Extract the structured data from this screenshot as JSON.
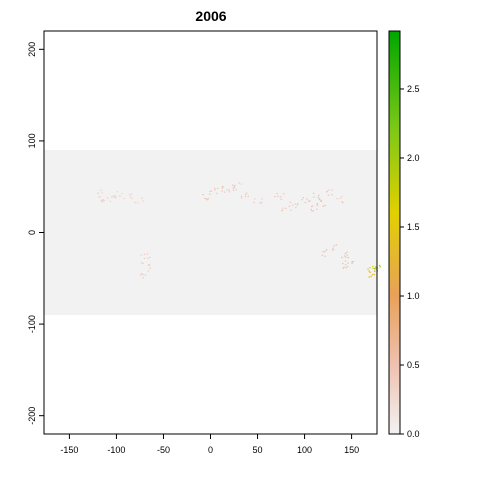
{
  "plot": {
    "title": "2006",
    "x_axis": {
      "range": [
        -177,
        177
      ],
      "ticks": [
        -150,
        -100,
        -50,
        0,
        50,
        100,
        150
      ]
    },
    "y_axis": {
      "range": [
        -220,
        220
      ],
      "ticks": [
        -200,
        -100,
        0,
        100,
        200
      ]
    },
    "raster_extent": {
      "lat_min": -90,
      "lat_max": 90,
      "background_color": "#f2f2f2"
    }
  },
  "colorbar": {
    "range": [
      0,
      2.92
    ],
    "ticks": [
      "0.0",
      "0.5",
      "1.0",
      "1.5",
      "2.0",
      "2.5"
    ],
    "tick_values": [
      0,
      0.5,
      1.0,
      1.5,
      2.0,
      2.5
    ],
    "stops": [
      {
        "value": 0.0,
        "color": "#f2f2f2"
      },
      {
        "value": 0.5,
        "color": "#efc1b0"
      },
      {
        "value": 1.0,
        "color": "#e8a15a"
      },
      {
        "value": 1.6,
        "color": "#e2d000"
      },
      {
        "value": 2.2,
        "color": "#7fc817"
      },
      {
        "value": 2.92,
        "color": "#00a600"
      }
    ]
  },
  "chart_data": {
    "type": "heatmap",
    "title": "2006",
    "xlabel": "",
    "ylabel": "",
    "xlim": [
      -177,
      177
    ],
    "ylim": [
      -220,
      220
    ],
    "value_range": [
      0,
      2.92
    ],
    "cells": [
      {
        "lon": -120,
        "lat": 43,
        "value": 0.35
      },
      {
        "lon": -113,
        "lat": 36,
        "value": 0.4
      },
      {
        "lon": -104,
        "lat": 38,
        "value": 0.35
      },
      {
        "lon": -97,
        "lat": 44,
        "value": 0.3
      },
      {
        "lon": -88,
        "lat": 40,
        "value": 0.3
      },
      {
        "lon": -77,
        "lat": 36,
        "value": 0.3
      },
      {
        "lon": -70,
        "lat": -25,
        "value": 0.4
      },
      {
        "lon": -70,
        "lat": -35,
        "value": 0.4
      },
      {
        "lon": -71,
        "lat": -45,
        "value": 0.4
      },
      {
        "lon": -5,
        "lat": 40,
        "value": 0.5
      },
      {
        "lon": 2,
        "lat": 46,
        "value": 0.45
      },
      {
        "lon": 12,
        "lat": 48,
        "value": 0.45
      },
      {
        "lon": 22,
        "lat": 47,
        "value": 0.45
      },
      {
        "lon": 28,
        "lat": 52,
        "value": 0.4
      },
      {
        "lon": 35,
        "lat": 40,
        "value": 0.45
      },
      {
        "lon": 50,
        "lat": 36,
        "value": 0.4
      },
      {
        "lon": 72,
        "lat": 40,
        "value": 0.45
      },
      {
        "lon": 80,
        "lat": 28,
        "value": 0.45
      },
      {
        "lon": 88,
        "lat": 30,
        "value": 0.45
      },
      {
        "lon": 100,
        "lat": 35,
        "value": 0.5
      },
      {
        "lon": 108,
        "lat": 28,
        "value": 0.5
      },
      {
        "lon": 112,
        "lat": 40,
        "value": 0.5
      },
      {
        "lon": 118,
        "lat": 32,
        "value": 0.55
      },
      {
        "lon": 125,
        "lat": 45,
        "value": 0.45
      },
      {
        "lon": 138,
        "lat": 36,
        "value": 0.4
      },
      {
        "lon": 118,
        "lat": -22,
        "value": 0.5
      },
      {
        "lon": 132,
        "lat": -15,
        "value": 0.45
      },
      {
        "lon": 144,
        "lat": -23,
        "value": 0.55
      },
      {
        "lon": 148,
        "lat": -30,
        "value": 0.55
      },
      {
        "lon": 145,
        "lat": -36,
        "value": 0.5
      },
      {
        "lon": 172,
        "lat": -40,
        "value": 1.5
      },
      {
        "lon": 175,
        "lat": -38,
        "value": 2.1
      },
      {
        "lon": 168,
        "lat": -45,
        "value": 1.3
      }
    ]
  }
}
